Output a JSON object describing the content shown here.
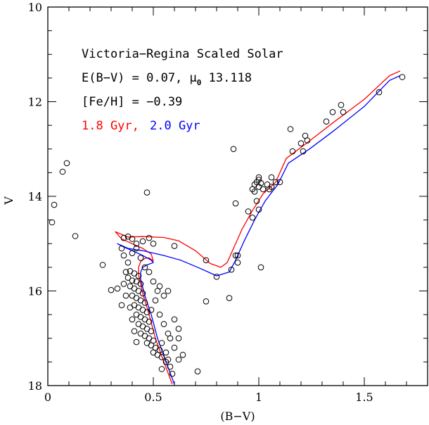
{
  "chart_data": {
    "type": "scatter",
    "title": "",
    "xlabel": "(B−V)",
    "ylabel": "V",
    "xlim": [
      0,
      1.8
    ],
    "ylim": [
      18,
      10
    ],
    "y_inverted": true,
    "grid": false,
    "x_ticks": [
      0,
      0.5,
      1,
      1.5
    ],
    "x_tick_labels": [
      "0",
      "0.5",
      "1",
      "1.5"
    ],
    "y_ticks": [
      10,
      12,
      14,
      16,
      18
    ],
    "y_tick_labels": [
      "10",
      "12",
      "14",
      "16",
      "18"
    ],
    "annotations": [
      {
        "text": "Victoria−Regina Scaled Solar",
        "color": "#000000"
      },
      {
        "text": "E(B−V) = 0.07, μ",
        "sub": "0",
        "tail": " 13.118",
        "color": "#000000"
      },
      {
        "text": "[Fe/H] = −0.39",
        "color": "#000000"
      }
    ],
    "legend_placement": "top-left",
    "series": [
      {
        "name": "1.8 Gyr,",
        "kind": "line",
        "color": "#ff0000",
        "points": [
          [
            0.59,
            17.97
          ],
          [
            0.55,
            17.5
          ],
          [
            0.51,
            17.0
          ],
          [
            0.48,
            16.5
          ],
          [
            0.45,
            16.05
          ],
          [
            0.43,
            15.65
          ],
          [
            0.43,
            15.5
          ],
          [
            0.44,
            15.38
          ],
          [
            0.46,
            15.31
          ],
          [
            0.48,
            15.3
          ],
          [
            0.5,
            15.37
          ],
          [
            0.49,
            15.22
          ],
          [
            0.45,
            15.1
          ],
          [
            0.4,
            15.0
          ],
          [
            0.35,
            14.9
          ],
          [
            0.32,
            14.75
          ],
          [
            0.38,
            14.86
          ],
          [
            0.45,
            14.85
          ],
          [
            0.55,
            14.87
          ],
          [
            0.62,
            14.94
          ],
          [
            0.7,
            15.15
          ],
          [
            0.77,
            15.42
          ],
          [
            0.82,
            15.5
          ],
          [
            0.85,
            15.4
          ],
          [
            0.88,
            15.1
          ],
          [
            0.92,
            14.7
          ],
          [
            0.97,
            14.3
          ],
          [
            1.02,
            13.95
          ],
          [
            1.08,
            13.7
          ],
          [
            1.13,
            13.2
          ],
          [
            1.22,
            12.9
          ],
          [
            1.35,
            12.45
          ],
          [
            1.5,
            11.95
          ],
          [
            1.62,
            11.45
          ],
          [
            1.67,
            11.35
          ]
        ]
      },
      {
        "name": "2.0 Gyr",
        "kind": "line",
        "color": "#0000ff",
        "points": [
          [
            0.6,
            17.97
          ],
          [
            0.56,
            17.5
          ],
          [
            0.52,
            17.0
          ],
          [
            0.49,
            16.5
          ],
          [
            0.46,
            16.1
          ],
          [
            0.44,
            15.75
          ],
          [
            0.44,
            15.6
          ],
          [
            0.45,
            15.5
          ],
          [
            0.47,
            15.45
          ],
          [
            0.5,
            15.4
          ],
          [
            0.49,
            15.35
          ],
          [
            0.45,
            15.25
          ],
          [
            0.4,
            15.15
          ],
          [
            0.35,
            15.05
          ],
          [
            0.33,
            15.0
          ],
          [
            0.38,
            15.1
          ],
          [
            0.45,
            15.15
          ],
          [
            0.55,
            15.25
          ],
          [
            0.63,
            15.35
          ],
          [
            0.72,
            15.52
          ],
          [
            0.8,
            15.68
          ],
          [
            0.86,
            15.6
          ],
          [
            0.89,
            15.35
          ],
          [
            0.93,
            14.95
          ],
          [
            0.98,
            14.5
          ],
          [
            1.03,
            14.1
          ],
          [
            1.09,
            13.75
          ],
          [
            1.14,
            13.3
          ],
          [
            1.24,
            13.0
          ],
          [
            1.36,
            12.6
          ],
          [
            1.5,
            12.1
          ],
          [
            1.62,
            11.55
          ],
          [
            1.67,
            11.45
          ]
        ]
      },
      {
        "name": "",
        "kind": "scatter",
        "color": "#000000",
        "points": [
          [
            0.09,
            13.3
          ],
          [
            0.07,
            13.48
          ],
          [
            0.03,
            14.18
          ],
          [
            0.02,
            14.55
          ],
          [
            0.13,
            14.84
          ],
          [
            0.26,
            15.45
          ],
          [
            0.3,
            15.98
          ],
          [
            0.33,
            15.95
          ],
          [
            0.35,
            16.3
          ],
          [
            0.47,
            13.92
          ],
          [
            0.39,
            15.58
          ],
          [
            0.41,
            15.63
          ],
          [
            0.43,
            15.68
          ],
          [
            0.38,
            15.72
          ],
          [
            0.4,
            15.78
          ],
          [
            0.42,
            15.8
          ],
          [
            0.44,
            15.85
          ],
          [
            0.39,
            15.9
          ],
          [
            0.41,
            15.95
          ],
          [
            0.43,
            16.0
          ],
          [
            0.45,
            16.05
          ],
          [
            0.4,
            16.1
          ],
          [
            0.42,
            16.15
          ],
          [
            0.44,
            16.2
          ],
          [
            0.46,
            16.25
          ],
          [
            0.41,
            16.3
          ],
          [
            0.43,
            16.35
          ],
          [
            0.45,
            16.4
          ],
          [
            0.47,
            16.45
          ],
          [
            0.42,
            16.5
          ],
          [
            0.44,
            16.55
          ],
          [
            0.46,
            16.6
          ],
          [
            0.48,
            16.65
          ],
          [
            0.43,
            16.7
          ],
          [
            0.45,
            16.75
          ],
          [
            0.47,
            16.8
          ],
          [
            0.49,
            16.85
          ],
          [
            0.44,
            16.9
          ],
          [
            0.46,
            16.95
          ],
          [
            0.48,
            17.0
          ],
          [
            0.5,
            17.05
          ],
          [
            0.47,
            17.1
          ],
          [
            0.49,
            17.15
          ],
          [
            0.51,
            17.2
          ],
          [
            0.53,
            17.25
          ],
          [
            0.5,
            17.3
          ],
          [
            0.52,
            17.35
          ],
          [
            0.54,
            17.4
          ],
          [
            0.56,
            17.5
          ],
          [
            0.58,
            17.6
          ],
          [
            0.38,
            15.4
          ],
          [
            0.4,
            15.2
          ],
          [
            0.42,
            15.1
          ],
          [
            0.36,
            15.25
          ],
          [
            0.44,
            15.3
          ],
          [
            0.46,
            15.5
          ],
          [
            0.48,
            15.6
          ],
          [
            0.5,
            15.8
          ],
          [
            0.52,
            16.0
          ],
          [
            0.51,
            16.2
          ],
          [
            0.49,
            16.4
          ],
          [
            0.53,
            16.5
          ],
          [
            0.55,
            16.7
          ],
          [
            0.57,
            16.9
          ],
          [
            0.54,
            17.1
          ],
          [
            0.56,
            17.3
          ],
          [
            0.35,
            15.1
          ],
          [
            0.36,
            14.88
          ],
          [
            0.38,
            14.85
          ],
          [
            0.4,
            14.9
          ],
          [
            0.42,
            15.0
          ],
          [
            0.45,
            14.95
          ],
          [
            0.48,
            14.88
          ],
          [
            0.5,
            15.0
          ],
          [
            0.37,
            15.6
          ],
          [
            0.36,
            15.85
          ],
          [
            0.37,
            16.1
          ],
          [
            0.39,
            16.35
          ],
          [
            0.4,
            16.6
          ],
          [
            0.41,
            16.85
          ],
          [
            0.6,
            16.6
          ],
          [
            0.62,
            16.8
          ],
          [
            0.58,
            17.0
          ],
          [
            0.62,
            17.0
          ],
          [
            0.6,
            17.2
          ],
          [
            0.64,
            17.35
          ],
          [
            0.62,
            17.45
          ],
          [
            0.57,
            17.45
          ],
          [
            0.59,
            17.75
          ],
          [
            0.71,
            17.7
          ],
          [
            0.54,
            17.65
          ],
          [
            0.42,
            17.08
          ],
          [
            0.55,
            16.1
          ],
          [
            0.57,
            16.0
          ],
          [
            0.53,
            15.9
          ],
          [
            0.6,
            15.05
          ],
          [
            0.75,
            15.35
          ],
          [
            0.75,
            16.22
          ],
          [
            0.8,
            15.7
          ],
          [
            0.86,
            16.15
          ],
          [
            0.87,
            15.55
          ],
          [
            0.88,
            13.0
          ],
          [
            0.89,
            14.15
          ],
          [
            0.89,
            15.25
          ],
          [
            0.9,
            15.4
          ],
          [
            0.9,
            15.25
          ],
          [
            0.95,
            14.32
          ],
          [
            0.97,
            14.45
          ],
          [
            0.99,
            14.1
          ],
          [
            1.0,
            14.28
          ],
          [
            1.01,
            15.5
          ],
          [
            0.98,
            13.75
          ],
          [
            0.99,
            13.7
          ],
          [
            1.0,
            13.8
          ],
          [
            1.01,
            13.72
          ],
          [
            1.0,
            13.65
          ],
          [
            1.02,
            13.85
          ],
          [
            0.97,
            13.85
          ],
          [
            0.98,
            13.9
          ],
          [
            1.0,
            13.6
          ],
          [
            1.04,
            13.75
          ],
          [
            1.05,
            13.85
          ],
          [
            1.06,
            13.6
          ],
          [
            1.08,
            13.7
          ],
          [
            1.06,
            13.8
          ],
          [
            1.1,
            13.7
          ],
          [
            1.15,
            12.58
          ],
          [
            1.16,
            13.05
          ],
          [
            1.2,
            12.88
          ],
          [
            1.21,
            13.05
          ],
          [
            1.22,
            12.72
          ],
          [
            1.23,
            12.82
          ],
          [
            1.32,
            12.42
          ],
          [
            1.35,
            12.22
          ],
          [
            1.39,
            12.07
          ],
          [
            1.4,
            12.22
          ],
          [
            1.57,
            11.8
          ],
          [
            1.68,
            11.48
          ]
        ]
      }
    ]
  }
}
